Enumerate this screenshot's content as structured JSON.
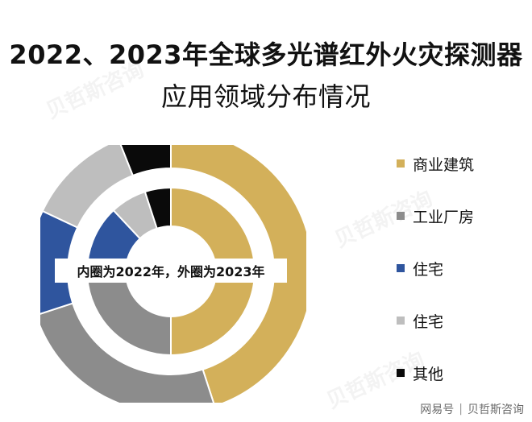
{
  "title": {
    "line1": "2022、2023年全球多光谱红外火灾探测器",
    "line2": "应用领域分布情况"
  },
  "watermark": "贝哲斯咨询",
  "footer": {
    "platform": "网易号",
    "source": "贝哲斯咨询"
  },
  "chart_data": {
    "type": "pie",
    "subtype": "double-donut",
    "annotation": "内圈为2022年，外圈为2023年",
    "legend_position": "right",
    "categories": [
      "商业建筑",
      "工业厂房",
      "住宅",
      "住宅",
      "其他"
    ],
    "colors": [
      "#D3B05A",
      "#8C8C8C",
      "#2F559E",
      "#BEBEBE",
      "#0A0A0A"
    ],
    "series": [
      {
        "name": "2022年",
        "ring": "inner",
        "values": [
          50,
          24,
          14,
          7,
          5
        ]
      },
      {
        "name": "2023年",
        "ring": "outer",
        "values": [
          45,
          25,
          12,
          12,
          6
        ]
      }
    ]
  }
}
